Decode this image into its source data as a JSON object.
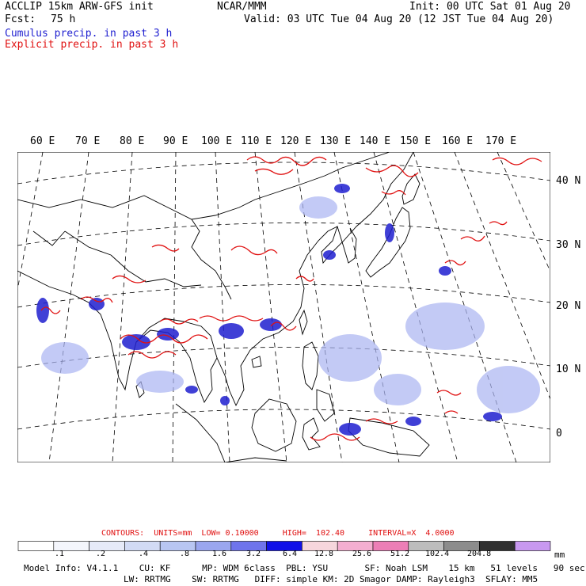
{
  "header": {
    "model": "ACCLIP 15km ARW-GFS init",
    "fcst_label": "Fcst:",
    "fcst_value": "75 h",
    "org": "NCAR/MMM",
    "init": "Init: 00 UTC Sat 01 Aug 20",
    "valid": "Valid: 03 UTC Tue 04 Aug 20 (12 JST Tue 04 Aug 20)",
    "cumulus_label": "Cumulus precip. in past 3 h",
    "explicit_label": "Explicit precip. in past 3 h"
  },
  "colors": {
    "cumulus": "#1f1fd0",
    "explicit": "#e01010",
    "coast": "#000000"
  },
  "map": {
    "lon_labels": [
      "60 E",
      "70 E",
      "80 E",
      "90 E",
      "100 E",
      "110 E",
      "120 E",
      "130 E",
      "140 E",
      "150 E",
      "160 E",
      "170 E"
    ],
    "lat_labels": [
      "40 N",
      "30 N",
      "20 N",
      "10 N",
      "0"
    ]
  },
  "contours": {
    "text": "CONTOURS:  UNITS=mm  LOW= 0.10000     HIGH=  102.40     INTERVAL=X  4.0000"
  },
  "colorbar": {
    "ticks": [
      ".1",
      ".2",
      ".4",
      ".8",
      "1.6",
      "3.2",
      "6.4",
      "12.8",
      "25.6",
      "51.2",
      "102.4",
      "204.8"
    ],
    "units": "mm",
    "colors": [
      "#ffffff",
      "#f4f6fc",
      "#e6eaf8",
      "#d2dbf5",
      "#b8c6f2",
      "#9aa6ef",
      "#6f74ec",
      "#1010e8",
      "#f6d6dc",
      "#f4aed0",
      "#ec7eb6",
      "#bdbdbd",
      "#8c8c8c",
      "#303030",
      "#c898f0"
    ]
  },
  "footer": {
    "line1": "Model Info: V4.1.1    CU: KF      MP: WDM 6class  PBL: YSU       SF: Noah LSM    15 km   51 levels   90 sec",
    "line2": "LW: RRTMG    SW: RRTMG   DIFF: simple KM: 2D Smagor DAMP: Rayleigh3  SFLAY: MM5"
  }
}
